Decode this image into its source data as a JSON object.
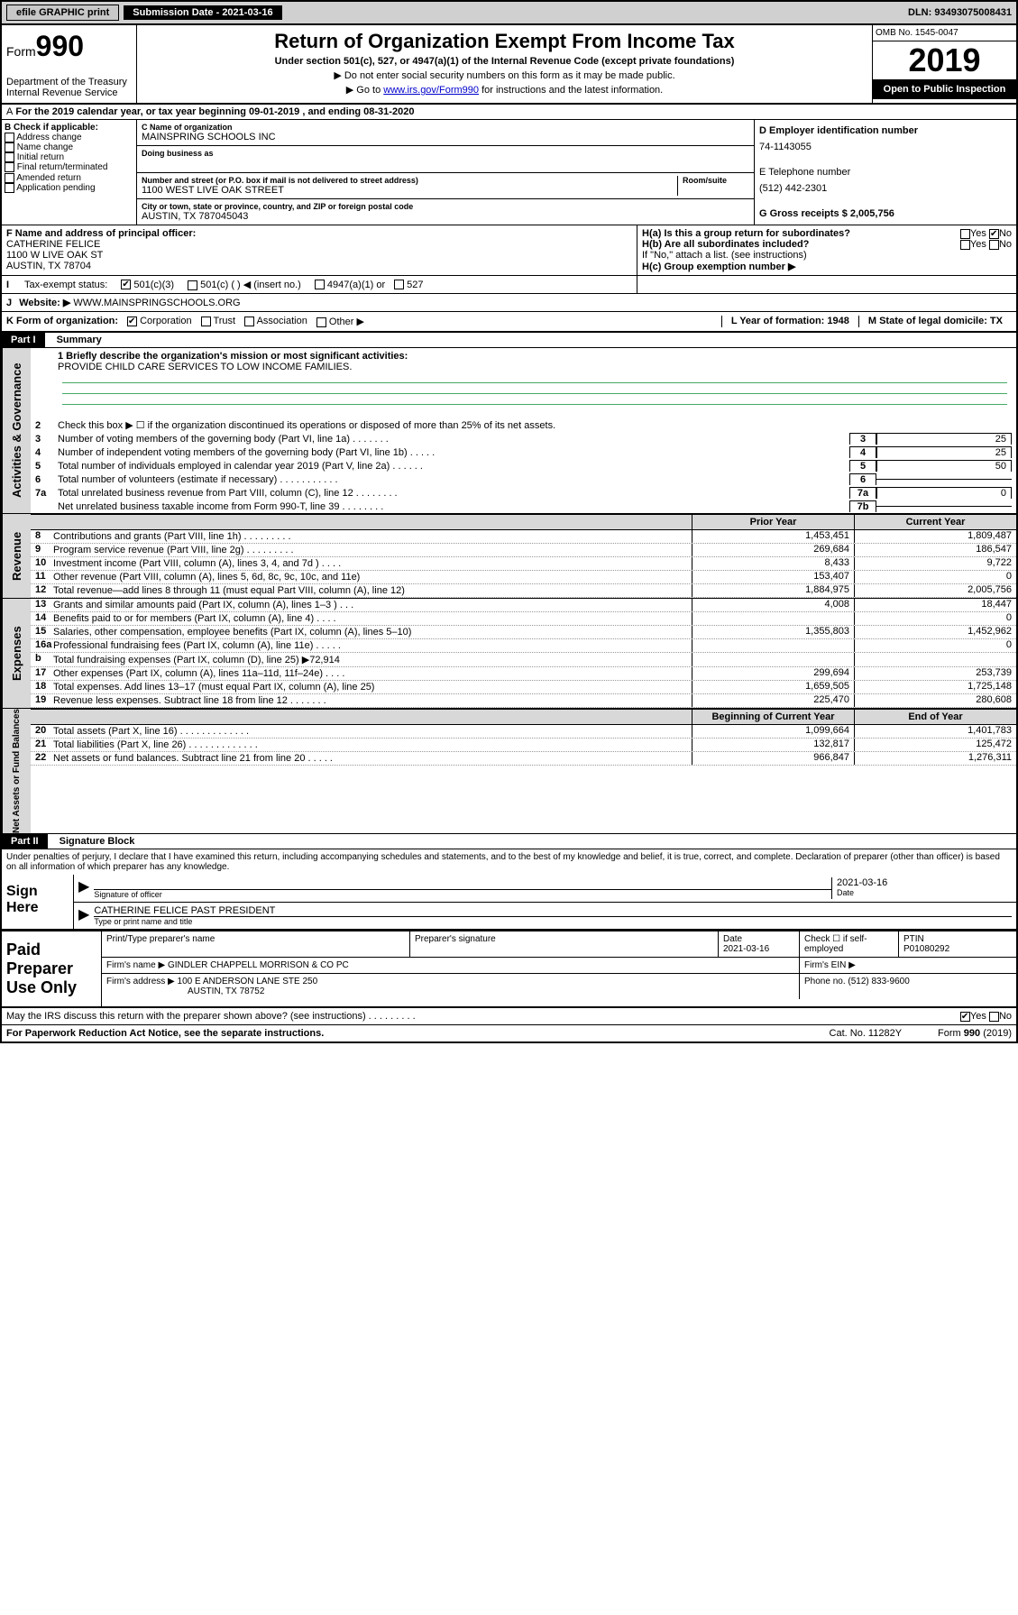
{
  "topbar": {
    "efile": "efile GRAPHIC print",
    "subdate_label": "Submission Date - 2021-03-16",
    "dln": "DLN: 93493075008431"
  },
  "header": {
    "form_prefix": "Form",
    "form_num": "990",
    "dept": "Department of the Treasury Internal Revenue Service",
    "title": "Return of Organization Exempt From Income Tax",
    "subtitle": "Under section 501(c), 527, or 4947(a)(1) of the Internal Revenue Code (except private foundations)",
    "instr1": "▶ Do not enter social security numbers on this form as it may be made public.",
    "instr2_pre": "▶ Go to ",
    "instr2_link": "www.irs.gov/Form990",
    "instr2_post": " for instructions and the latest information.",
    "omb": "OMB No. 1545-0047",
    "year": "2019",
    "openpub": "Open to Public Inspection"
  },
  "period": "For the 2019 calendar year, or tax year beginning 09-01-2019  , and ending 08-31-2020",
  "checkB": {
    "hdr": "B Check if applicable:",
    "opts": [
      "Address change",
      "Name change",
      "Initial return",
      "Final return/terminated",
      "Amended return",
      "Application pending"
    ]
  },
  "orgC": {
    "name_lbl": "C Name of organization",
    "name": "MAINSPRING SCHOOLS INC",
    "dba_lbl": "Doing business as",
    "addr_lbl": "Number and street (or P.O. box if mail is not delivered to street address)",
    "addr": "1100 WEST LIVE OAK STREET",
    "room_lbl": "Room/suite",
    "city_lbl": "City or town, state or province, country, and ZIP or foreign postal code",
    "city": "AUSTIN, TX  787045043"
  },
  "colD": {
    "ein_lbl": "D Employer identification number",
    "ein": "74-1143055",
    "phone_lbl": "E Telephone number",
    "phone": "(512) 442-2301",
    "gross_lbl": "G Gross receipts $ 2,005,756"
  },
  "officer": {
    "lbl": "F  Name and address of principal officer:",
    "name": "CATHERINE FELICE",
    "addr1": "1100 W LIVE OAK ST",
    "addr2": "AUSTIN, TX  78704"
  },
  "ha": {
    "lbl": "H(a)  Is this a group return for subordinates?",
    "hb_lbl": "H(b)  Are all subordinates included?",
    "hb_note": "If \"No,\" attach a list. (see instructions)",
    "hc_lbl": "H(c)  Group exemption number ▶"
  },
  "tax_status_lbl": "Tax-exempt status:",
  "tax_opts": [
    "501(c)(3)",
    "501(c) (  ) ◀ (insert no.)",
    "4947(a)(1) or",
    "527"
  ],
  "website_lbl": "Website: ▶",
  "website": "WWW.MAINSPRINGSCHOOLS.ORG",
  "kline": {
    "lbl": "K Form of organization:",
    "opts": [
      "Corporation",
      "Trust",
      "Association",
      "Other ▶"
    ],
    "lyr_lbl": "L Year of formation: 1948",
    "mstate_lbl": "M State of legal domicile: TX"
  },
  "part1": {
    "num": "Part I",
    "title": "Summary"
  },
  "mission_lbl": "1  Briefly describe the organization's mission or most significant activities:",
  "mission": "PROVIDE CHILD CARE SERVICES TO LOW INCOME FAMILIES.",
  "line2": "Check this box ▶ ☐  if the organization discontinued its operations or disposed of more than 25% of its net assets.",
  "govlines": [
    {
      "n": "3",
      "t": "Number of voting members of the governing body (Part VI, line 1a)  .    .    .    .    .    .    .",
      "b": "3",
      "v": "25"
    },
    {
      "n": "4",
      "t": "Number of independent voting members of the governing body (Part VI, line 1b)  .    .    .    .    .",
      "b": "4",
      "v": "25"
    },
    {
      "n": "5",
      "t": "Total number of individuals employed in calendar year 2019 (Part V, line 2a)  .    .    .    .    .    .",
      "b": "5",
      "v": "50"
    },
    {
      "n": "6",
      "t": "Total number of volunteers (estimate if necessary)  .    .    .    .    .    .    .    .    .    .    .",
      "b": "6",
      "v": ""
    },
    {
      "n": "7a",
      "t": "Total unrelated business revenue from Part VIII, column (C), line 12  .    .    .    .    .    .    .    .",
      "b": "7a",
      "v": "0"
    },
    {
      "n": "",
      "t": "Net unrelated business taxable income from Form 990-T, line 39  .    .    .    .    .    .    .    .",
      "b": "7b",
      "v": ""
    }
  ],
  "hdr_prior": "Prior Year",
  "hdr_curr": "Current Year",
  "revenue": [
    {
      "n": "8",
      "t": "Contributions and grants (Part VIII, line 1h)  .    .    .    .    .    .    .    .    .",
      "p": "1,453,451",
      "c": "1,809,487"
    },
    {
      "n": "9",
      "t": "Program service revenue (Part VIII, line 2g)  .    .    .    .    .    .    .    .    .",
      "p": "269,684",
      "c": "186,547"
    },
    {
      "n": "10",
      "t": "Investment income (Part VIII, column (A), lines 3, 4, and 7d )  .    .    .    .",
      "p": "8,433",
      "c": "9,722"
    },
    {
      "n": "11",
      "t": "Other revenue (Part VIII, column (A), lines 5, 6d, 8c, 9c, 10c, and 11e)",
      "p": "153,407",
      "c": "0"
    },
    {
      "n": "12",
      "t": "Total revenue—add lines 8 through 11 (must equal Part VIII, column (A), line 12)",
      "p": "1,884,975",
      "c": "2,005,756"
    }
  ],
  "expenses": [
    {
      "n": "13",
      "t": "Grants and similar amounts paid (Part IX, column (A), lines 1–3 )  .    .    .",
      "p": "4,008",
      "c": "18,447"
    },
    {
      "n": "14",
      "t": "Benefits paid to or for members (Part IX, column (A), line 4)  .    .    .    .",
      "p": "",
      "c": "0"
    },
    {
      "n": "15",
      "t": "Salaries, other compensation, employee benefits (Part IX, column (A), lines 5–10)",
      "p": "1,355,803",
      "c": "1,452,962"
    },
    {
      "n": "16a",
      "t": "Professional fundraising fees (Part IX, column (A), line 11e)  .    .    .    .    .",
      "p": "",
      "c": "0"
    },
    {
      "n": "b",
      "t": "Total fundraising expenses (Part IX, column (D), line 25) ▶72,914",
      "p": "",
      "c": ""
    },
    {
      "n": "17",
      "t": "Other expenses (Part IX, column (A), lines 11a–11d, 11f–24e)  .    .    .    .",
      "p": "299,694",
      "c": "253,739"
    },
    {
      "n": "18",
      "t": "Total expenses. Add lines 13–17 (must equal Part IX, column (A), line 25)",
      "p": "1,659,505",
      "c": "1,725,148"
    },
    {
      "n": "19",
      "t": "Revenue less expenses. Subtract line 18 from line 12  .    .    .    .    .    .    .",
      "p": "225,470",
      "c": "280,608"
    }
  ],
  "hdr_begin": "Beginning of Current Year",
  "hdr_end": "End of Year",
  "netassets": [
    {
      "n": "20",
      "t": "Total assets (Part X, line 16)  .    .    .    .    .    .    .    .    .    .    .    .    .",
      "p": "1,099,664",
      "c": "1,401,783"
    },
    {
      "n": "21",
      "t": "Total liabilities (Part X, line 26)  .    .    .    .    .    .    .    .    .    .    .    .    .",
      "p": "132,817",
      "c": "125,472"
    },
    {
      "n": "22",
      "t": "Net assets or fund balances. Subtract line 21 from line 20  .    .    .    .    .",
      "p": "966,847",
      "c": "1,276,311"
    }
  ],
  "vtabs": {
    "gov": "Activities & Governance",
    "rev": "Revenue",
    "exp": "Expenses",
    "net": "Net Assets or Fund Balances"
  },
  "part2": {
    "num": "Part II",
    "title": "Signature Block"
  },
  "sig": {
    "perjury": "Under penalties of perjury, I declare that I have examined this return, including accompanying schedules and statements, and to the best of my knowledge and belief, it is true, correct, and complete. Declaration of preparer (other than officer) is based on all information of which preparer has any knowledge.",
    "sign_here": "Sign Here",
    "sig_off": "Signature of officer",
    "date": "2021-03-16",
    "date_lbl": "Date",
    "name": "CATHERINE FELICE  PAST PRESIDENT",
    "name_lbl": "Type or print name and title"
  },
  "prep": {
    "label": "Paid Preparer Use Only",
    "name_lbl": "Print/Type preparer's name",
    "sig_lbl": "Preparer's signature",
    "date_lbl": "Date",
    "date": "2021-03-16",
    "check_lbl": "Check ☐ if self-employed",
    "ptin_lbl": "PTIN",
    "ptin": "P01080292",
    "firm_name_lbl": "Firm's name    ▶",
    "firm_name": "GINDLER CHAPPELL MORRISON & CO PC",
    "firm_ein_lbl": "Firm's EIN ▶",
    "firm_addr_lbl": "Firm's address ▶",
    "firm_addr1": "100 E ANDERSON LANE STE 250",
    "firm_addr2": "AUSTIN, TX  78752",
    "phone_lbl": "Phone no. (512) 833-9600"
  },
  "discuss": "May the IRS discuss this return with the preparer shown above? (see instructions)   .    .    .    .    .    .    .    .    .",
  "footer": {
    "pra": "For Paperwork Reduction Act Notice, see the separate instructions.",
    "cat": "Cat. No. 11282Y",
    "form": "Form 990 (2019)"
  }
}
